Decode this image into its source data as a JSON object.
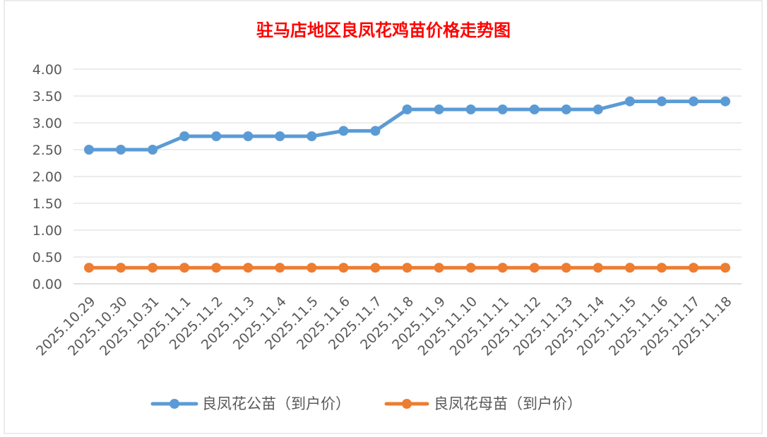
{
  "chart_data": {
    "type": "line",
    "title": "驻马店地区良凤花鸡苗价格走势图",
    "categories": [
      "2025.10.29",
      "2025.10.30",
      "2025.10.31",
      "2025.11.1",
      "2025.11.2",
      "2025.11.3",
      "2025.11.4",
      "2025.11.5",
      "2025.11.6",
      "2025.11.7",
      "2025.11.8",
      "2025.11.9",
      "2025.11.10",
      "2025.11.11",
      "2025.11.12",
      "2025.11.13",
      "2025.11.14",
      "2025.11.15",
      "2025.11.16",
      "2025.11.17",
      "2025.11.18"
    ],
    "series": [
      {
        "name": "良凤花公苗（到户价）",
        "color": "#5b9bd5",
        "values": [
          2.5,
          2.5,
          2.5,
          2.75,
          2.75,
          2.75,
          2.75,
          2.75,
          2.85,
          2.85,
          3.25,
          3.25,
          3.25,
          3.25,
          3.25,
          3.25,
          3.25,
          3.4,
          3.4,
          3.4,
          3.4
        ]
      },
      {
        "name": "良凤花母苗（到户价）",
        "color": "#ed7d31",
        "values": [
          0.3,
          0.3,
          0.3,
          0.3,
          0.3,
          0.3,
          0.3,
          0.3,
          0.3,
          0.3,
          0.3,
          0.3,
          0.3,
          0.3,
          0.3,
          0.3,
          0.3,
          0.3,
          0.3,
          0.3,
          0.3
        ]
      }
    ],
    "yticks": [
      "0.00",
      "0.50",
      "1.00",
      "1.50",
      "2.00",
      "2.50",
      "3.00",
      "3.50",
      "4.00"
    ],
    "ylim": [
      0,
      4
    ],
    "grid": true,
    "legend_position": "bottom"
  }
}
